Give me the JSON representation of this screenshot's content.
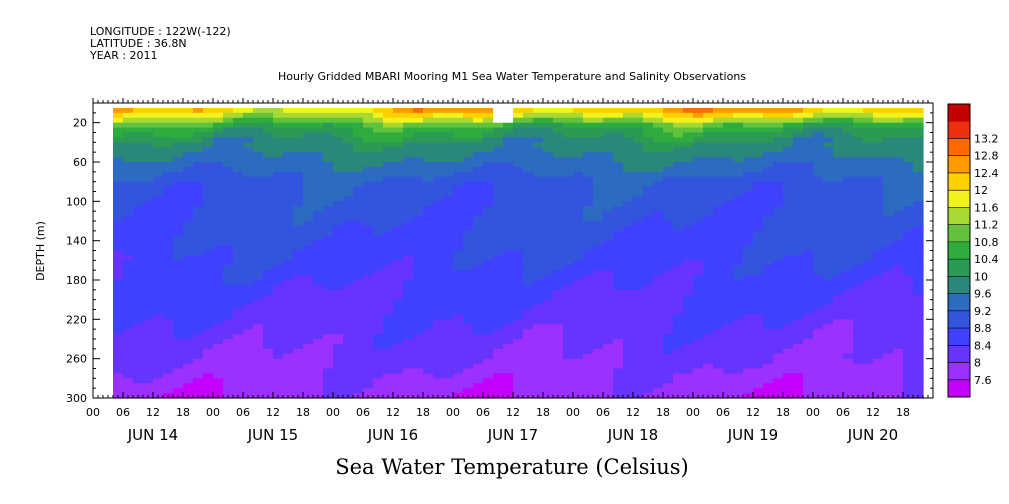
{
  "header": {
    "longitude": "LONGITUDE : 122W(-122)",
    "latitude": "LATITUDE : 36.8N",
    "year": "YEAR : 2011",
    "title": "Hourly Gridded MBARI Mooring M1 Sea Water Temperature and Salinity Observations"
  },
  "chart_data": {
    "type": "heatmap",
    "title": "Hourly Gridded MBARI Mooring M1 Sea Water Temperature and Salinity Observations",
    "bottom_title": "Sea Water Temperature (Celsius)",
    "ylabel": "DEPTH (m)",
    "y_range": [
      0,
      300
    ],
    "y_inverted": true,
    "y_ticks": [
      20,
      60,
      100,
      140,
      180,
      220,
      260,
      300
    ],
    "x_range_hours": [
      0,
      168
    ],
    "x_hour_ticks": [
      "00",
      "06",
      "12",
      "18",
      "00",
      "06",
      "12",
      "18",
      "00",
      "06",
      "12",
      "18",
      "00",
      "06",
      "12",
      "18",
      "00",
      "06",
      "12",
      "18",
      "00",
      "06",
      "12",
      "18",
      "00",
      "06",
      "12",
      "18"
    ],
    "x_day_labels": [
      "JUN 14",
      "JUN 15",
      "JUN 16",
      "JUN 17",
      "JUN 18",
      "JUN 19",
      "JUN 20"
    ],
    "data_start_hour": 4,
    "data_end_hour": 166,
    "missing_block": {
      "hours": [
        8,
        12
      ],
      "date": "JUN 17",
      "depth_range": [
        5,
        20
      ]
    },
    "colorbar": {
      "levels": [
        7.6,
        8,
        8.4,
        8.8,
        9.2,
        9.6,
        10,
        10.4,
        10.8,
        11.2,
        11.6,
        12,
        12.4,
        12.8,
        13.2
      ],
      "colors": [
        "#c400ff",
        "#9b30ff",
        "#6633ff",
        "#4040ff",
        "#3355dd",
        "#2b6cc0",
        "#2a8878",
        "#2a9a55",
        "#2eac40",
        "#62c23c",
        "#a8d832",
        "#f2f21e",
        "#ffd000",
        "#ff9a00",
        "#ff6a00",
        "#ee3010",
        "#c40000"
      ]
    },
    "profile": [
      {
        "depth": 5,
        "temp": 12.2
      },
      {
        "depth": 15,
        "temp": 11.4
      },
      {
        "depth": 25,
        "temp": 10.5
      },
      {
        "depth": 40,
        "temp": 9.9
      },
      {
        "depth": 60,
        "temp": 9.5
      },
      {
        "depth": 80,
        "temp": 9.1
      },
      {
        "depth": 100,
        "temp": 8.95
      },
      {
        "depth": 140,
        "temp": 8.8
      },
      {
        "depth": 180,
        "temp": 8.55
      },
      {
        "depth": 220,
        "temp": 8.3
      },
      {
        "depth": 260,
        "temp": 8.05
      },
      {
        "depth": 300,
        "temp": 7.7
      }
    ]
  },
  "colors": {
    "background": "#ffffff",
    "axis": "#000000"
  }
}
